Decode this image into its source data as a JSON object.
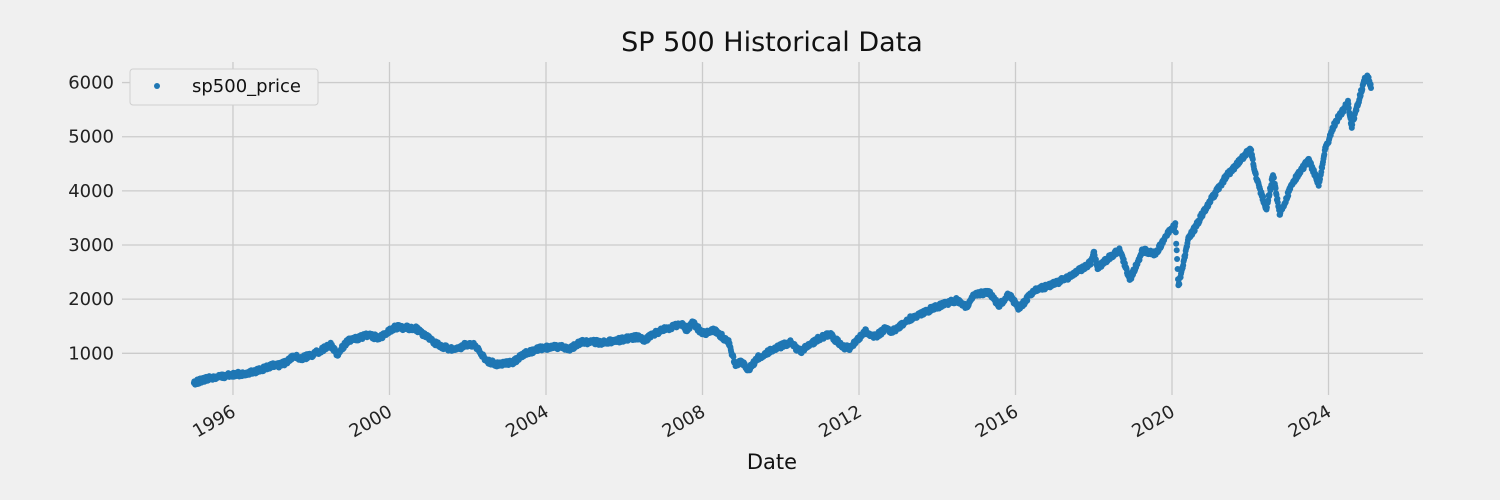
{
  "chart_data": {
    "type": "scatter",
    "title": "SP 500 Historical Data",
    "xlabel": "Date",
    "ylabel": "",
    "x_ticks": [
      "1996",
      "2000",
      "2004",
      "2008",
      "2012",
      "2016",
      "2020",
      "2024"
    ],
    "y_ticks": [
      1000,
      2000,
      3000,
      4000,
      5000,
      6000
    ],
    "xlim": [
      "1993-03-01",
      "2026-06-01"
    ],
    "ylim": [
      230,
      6380
    ],
    "grid": true,
    "legend_position": "top-left",
    "series": [
      {
        "name": "sp500_price",
        "color": "#1f77b4",
        "points": [
          [
            "1995-01-01",
            460
          ],
          [
            "1995-06-01",
            540
          ],
          [
            "1996-01-01",
            600
          ],
          [
            "1996-07-01",
            650
          ],
          [
            "1997-01-01",
            770
          ],
          [
            "1997-04-01",
            790
          ],
          [
            "1997-08-01",
            950
          ],
          [
            "1997-10-01",
            910
          ],
          [
            "1998-01-01",
            960
          ],
          [
            "1998-07-01",
            1150
          ],
          [
            "1998-09-01",
            990
          ],
          [
            "1998-12-01",
            1220
          ],
          [
            "1999-06-01",
            1330
          ],
          [
            "1999-10-01",
            1290
          ],
          [
            "2000-01-01",
            1420
          ],
          [
            "2000-03-01",
            1480
          ],
          [
            "2000-09-01",
            1460
          ],
          [
            "2000-12-01",
            1320
          ],
          [
            "2001-04-01",
            1150
          ],
          [
            "2001-09-01",
            1050
          ],
          [
            "2001-12-01",
            1150
          ],
          [
            "2002-03-01",
            1150
          ],
          [
            "2002-07-01",
            850
          ],
          [
            "2002-10-01",
            800
          ],
          [
            "2003-03-01",
            830
          ],
          [
            "2003-06-01",
            980
          ],
          [
            "2003-12-01",
            1100
          ],
          [
            "2004-06-01",
            1130
          ],
          [
            "2004-08-01",
            1080
          ],
          [
            "2004-12-01",
            1210
          ],
          [
            "2005-06-01",
            1200
          ],
          [
            "2005-12-01",
            1250
          ],
          [
            "2006-05-01",
            1300
          ],
          [
            "2006-07-01",
            1240
          ],
          [
            "2006-12-01",
            1420
          ],
          [
            "2007-07-01",
            1540
          ],
          [
            "2007-08-01",
            1430
          ],
          [
            "2007-10-01",
            1560
          ],
          [
            "2008-01-01",
            1370
          ],
          [
            "2008-05-01",
            1420
          ],
          [
            "2008-09-01",
            1200
          ],
          [
            "2008-11-01",
            800
          ],
          [
            "2009-01-01",
            850
          ],
          [
            "2009-03-01",
            680
          ],
          [
            "2009-06-01",
            920
          ],
          [
            "2009-12-01",
            1110
          ],
          [
            "2010-04-01",
            1200
          ],
          [
            "2010-07-01",
            1030
          ],
          [
            "2010-12-01",
            1250
          ],
          [
            "2011-04-01",
            1360
          ],
          [
            "2011-08-01",
            1120
          ],
          [
            "2011-10-01",
            1100
          ],
          [
            "2012-03-01",
            1400
          ],
          [
            "2012-06-01",
            1300
          ],
          [
            "2012-09-01",
            1450
          ],
          [
            "2012-11-01",
            1390
          ],
          [
            "2013-05-01",
            1650
          ],
          [
            "2013-12-01",
            1840
          ],
          [
            "2014-07-01",
            1980
          ],
          [
            "2014-10-01",
            1860
          ],
          [
            "2014-12-01",
            2080
          ],
          [
            "2015-05-01",
            2120
          ],
          [
            "2015-08-01",
            1880
          ],
          [
            "2015-11-01",
            2090
          ],
          [
            "2016-02-01",
            1830
          ],
          [
            "2016-07-01",
            2170
          ],
          [
            "2016-12-01",
            2260
          ],
          [
            "2017-06-01",
            2430
          ],
          [
            "2017-12-01",
            2670
          ],
          [
            "2018-01-01",
            2870
          ],
          [
            "2018-02-01",
            2580
          ],
          [
            "2018-09-01",
            2930
          ],
          [
            "2018-12-01",
            2350
          ],
          [
            "2019-04-01",
            2900
          ],
          [
            "2019-08-01",
            2840
          ],
          [
            "2019-12-01",
            3230
          ],
          [
            "2020-02-01",
            3380
          ],
          [
            "2020-03-01",
            2240
          ],
          [
            "2020-06-01",
            3100
          ],
          [
            "2020-12-01",
            3750
          ],
          [
            "2021-06-01",
            4300
          ],
          [
            "2021-12-01",
            4700
          ],
          [
            "2022-01-01",
            4790
          ],
          [
            "2022-03-01",
            4200
          ],
          [
            "2022-06-01",
            3670
          ],
          [
            "2022-08-01",
            4300
          ],
          [
            "2022-10-01",
            3580
          ],
          [
            "2022-12-01",
            3850
          ],
          [
            "2023-02-01",
            4150
          ],
          [
            "2023-07-01",
            4580
          ],
          [
            "2023-10-01",
            4120
          ],
          [
            "2023-12-01",
            4770
          ],
          [
            "2024-03-01",
            5250
          ],
          [
            "2024-07-01",
            5650
          ],
          [
            "2024-08-01",
            5180
          ],
          [
            "2024-12-01",
            6050
          ],
          [
            "2025-01-01",
            6100
          ],
          [
            "2025-02-01",
            5900
          ]
        ]
      }
    ]
  }
}
